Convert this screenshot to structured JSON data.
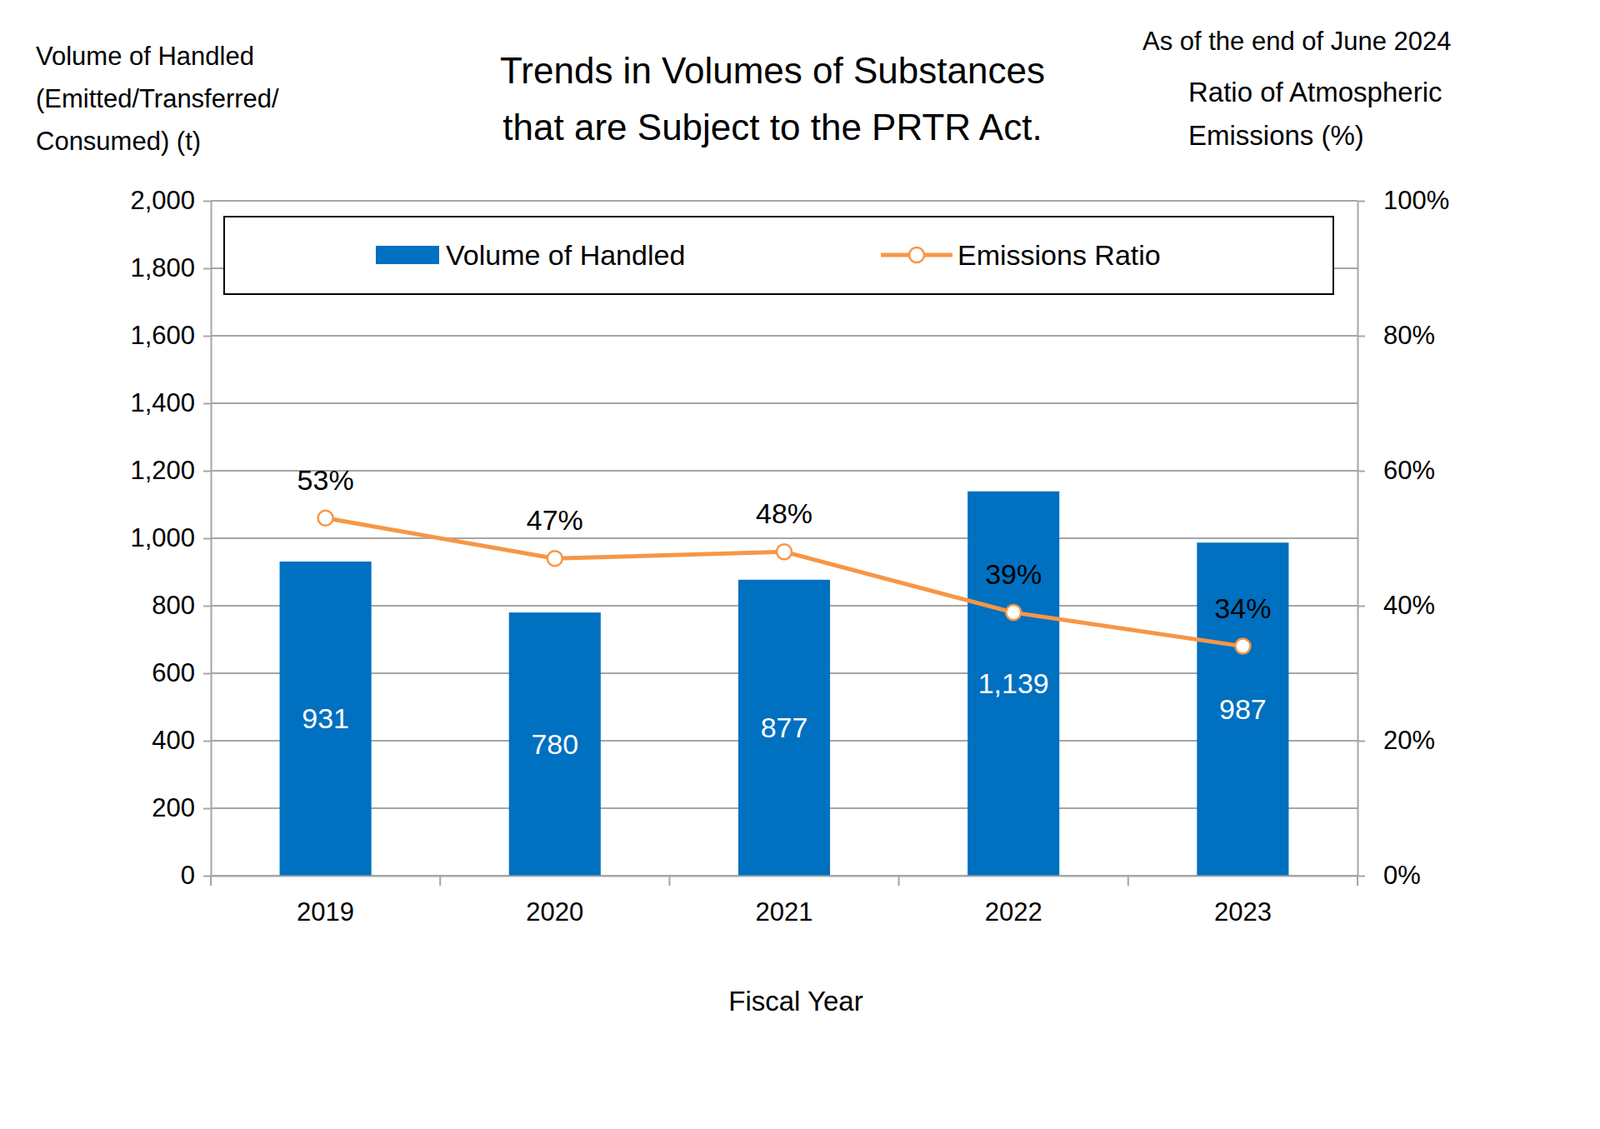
{
  "chart_data": {
    "type": "bar",
    "title": [
      "Trends in Volumes of Substances",
      "that are Subject to the PRTR Act."
    ],
    "annotation": "As of the end of June 2024",
    "xlabel": "Fiscal Year",
    "ylabel": [
      "Volume of Handled",
      "(Emitted/Transferred/",
      "Consumed) (t)"
    ],
    "y2label": [
      "Ratio of Atmospheric",
      "Emissions (%)"
    ],
    "categories": [
      "2019",
      "2020",
      "2021",
      "2022",
      "2023"
    ],
    "series": [
      {
        "name": "Volume of Handled",
        "type": "bar",
        "color": "#0070c0",
        "values": [
          931,
          780,
          877,
          1139,
          987
        ],
        "value_labels": [
          "931",
          "780",
          "877",
          "1,139",
          "987"
        ]
      },
      {
        "name": "Emissions Ratio",
        "type": "line",
        "axis": "y2",
        "color": "#f79646",
        "marker": "circle",
        "values": [
          53,
          47,
          48,
          39,
          34
        ],
        "value_labels": [
          "53%",
          "47%",
          "48%",
          "39%",
          "34%"
        ]
      }
    ],
    "ylim": [
      0,
      2000
    ],
    "yticks": [
      0,
      200,
      400,
      600,
      800,
      {
        "value": 1000,
        "label": "1,000"
      },
      {
        "value": 1200,
        "label": "1,200"
      },
      {
        "value": 1400,
        "label": "1,400"
      },
      {
        "value": 1600,
        "label": "1,600"
      },
      {
        "value": 1800,
        "label": "1,800"
      },
      {
        "value": 2000,
        "label": "2,000"
      }
    ],
    "y2lim": [
      0,
      100
    ],
    "y2ticks": [
      {
        "value": 0,
        "label": "0%"
      },
      {
        "value": 20,
        "label": "20%"
      },
      {
        "value": 40,
        "label": "40%"
      },
      {
        "value": 60,
        "label": "60%"
      },
      {
        "value": 80,
        "label": "80%"
      },
      {
        "value": 100,
        "label": "100%"
      }
    ],
    "grid": true,
    "legend": "top",
    "data_labels": true
  }
}
